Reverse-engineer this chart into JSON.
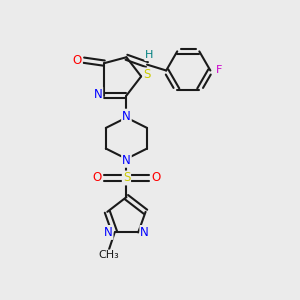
{
  "bg_color": "#ebebeb",
  "bond_color": "#1a1a1a",
  "atom_colors": {
    "O": "#ff0000",
    "N": "#0000ff",
    "S": "#cccc00",
    "F": "#cc00cc",
    "H": "#008080",
    "C": "#1a1a1a"
  },
  "figsize": [
    3.0,
    3.0
  ],
  "dpi": 100
}
